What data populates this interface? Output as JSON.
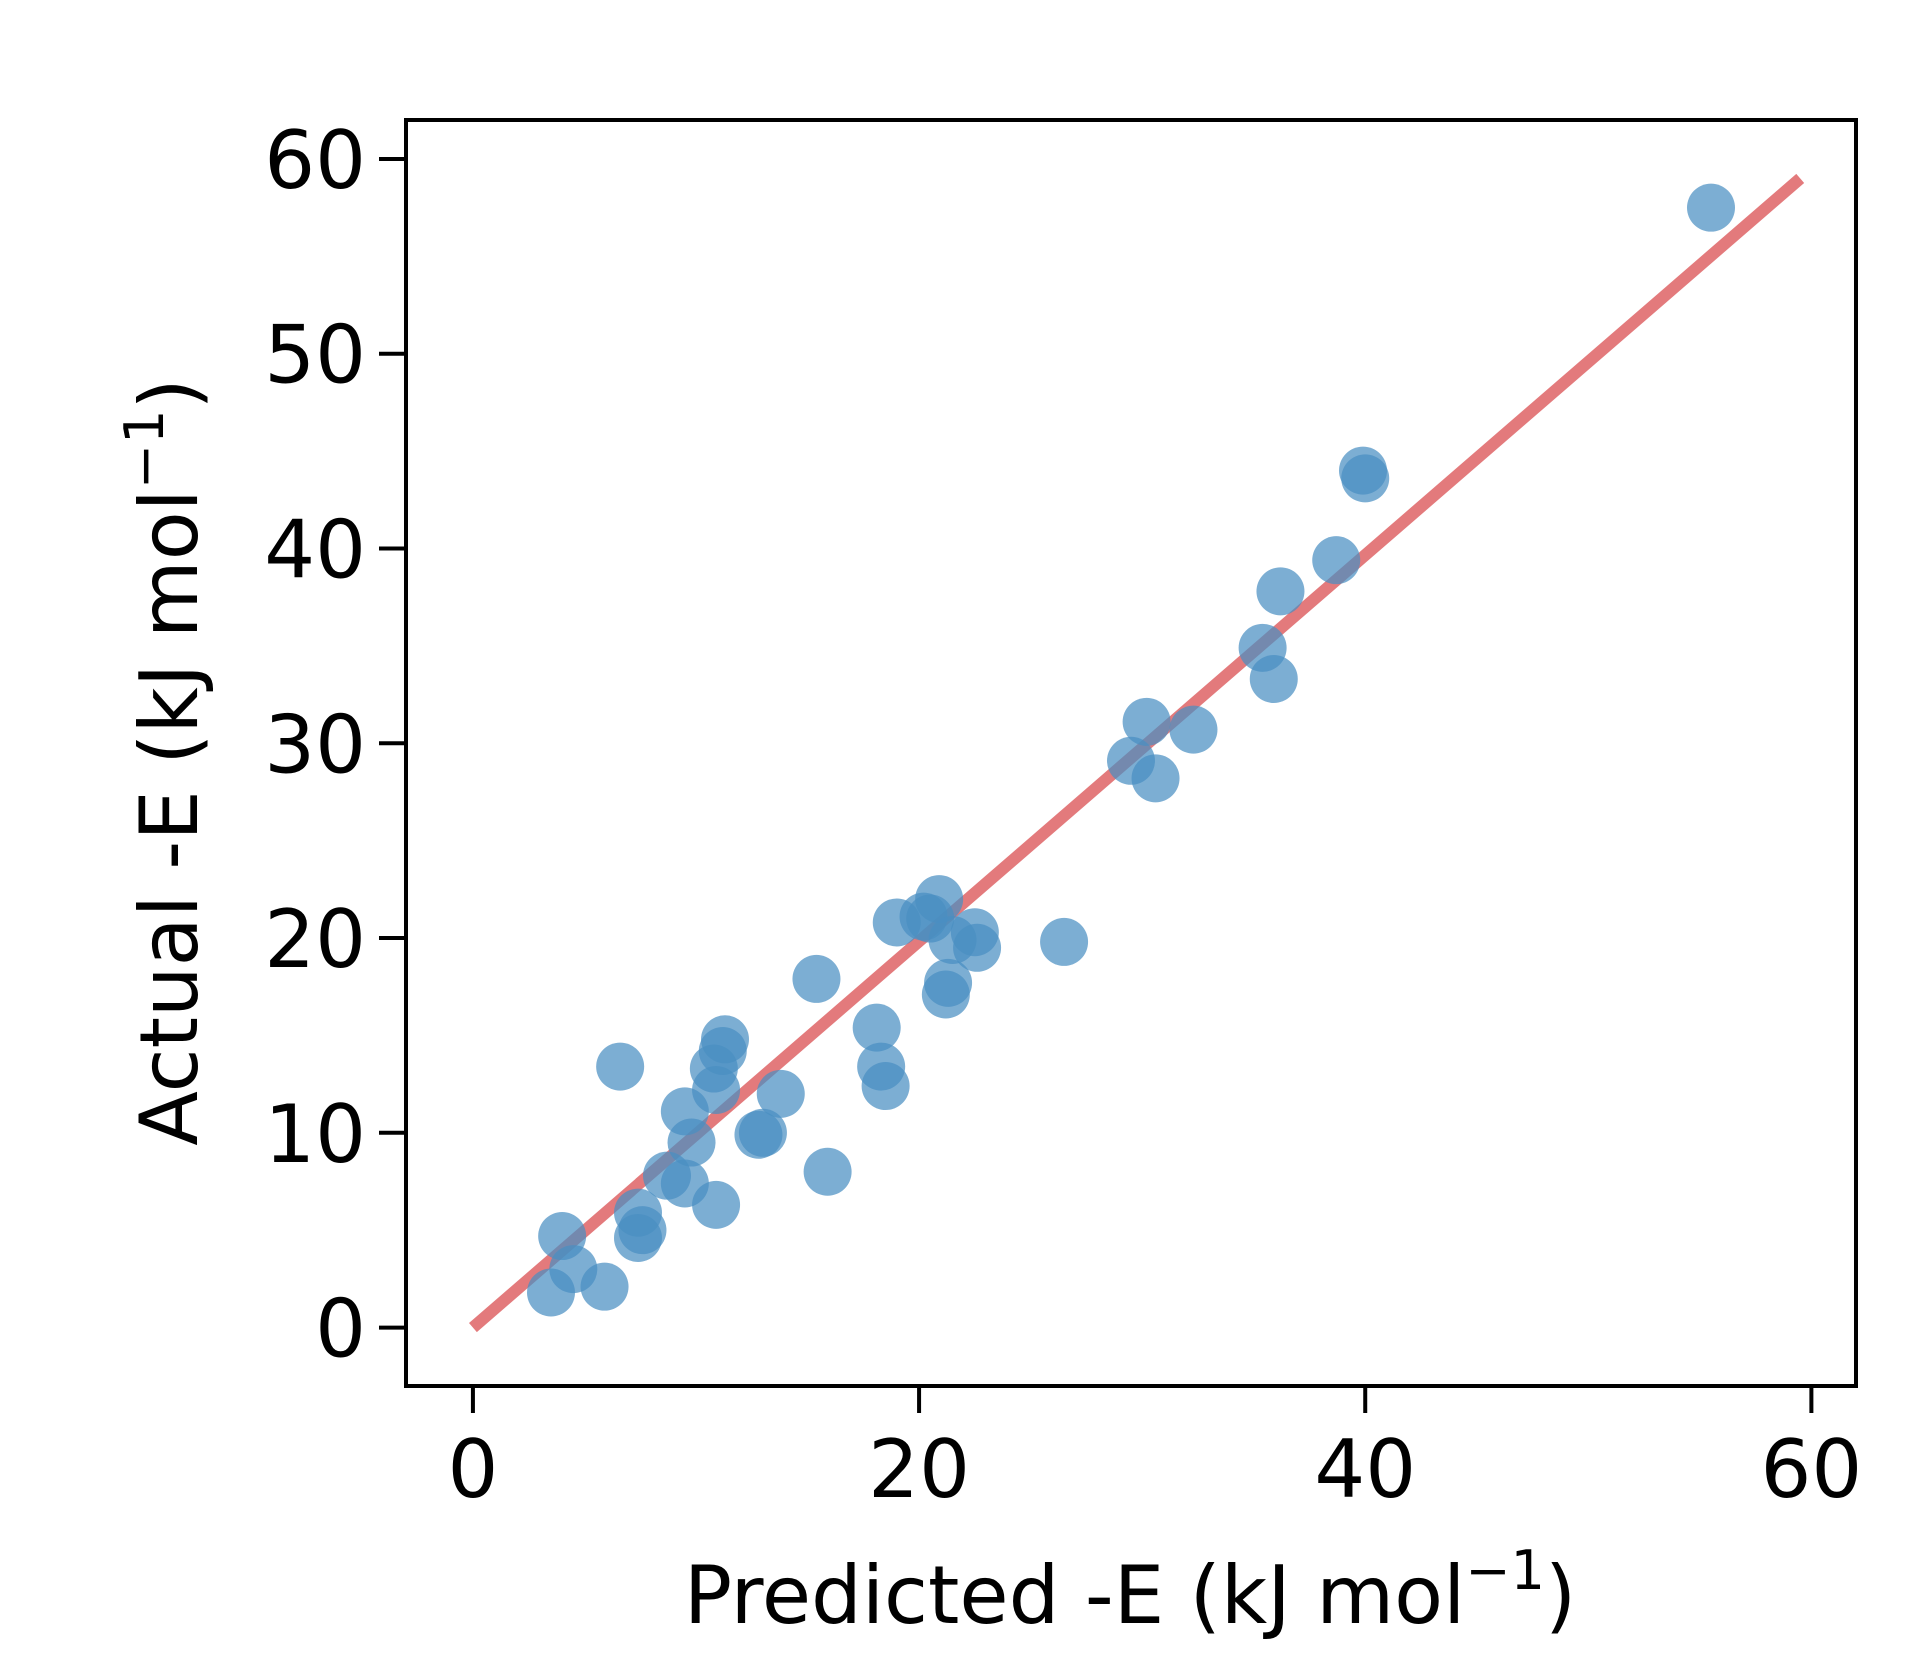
{
  "chart_data": {
    "type": "scatter",
    "title": "",
    "xlabel": {
      "text": "Predicted -E (kJ mol",
      "sup": "−1",
      "close": ")"
    },
    "ylabel": {
      "text": "Actual -E (kJ mol",
      "sup": "−1",
      "close": ")"
    },
    "xlim": [
      -3,
      62
    ],
    "ylim": [
      -3,
      62
    ],
    "xticks": [
      0,
      20,
      40,
      60
    ],
    "yticks": [
      0,
      10,
      20,
      30,
      40,
      50,
      60
    ],
    "grid": false,
    "legend": "none",
    "colors": {
      "points": "#4a8fc2",
      "fit_line": "#e06b6e",
      "axes": "#000000"
    },
    "fit_line": {
      "x": [
        0,
        59.5
      ],
      "y": [
        0,
        59.0
      ]
    },
    "points": [
      {
        "x": 3.5,
        "y": 1.8
      },
      {
        "x": 4.5,
        "y": 3.0
      },
      {
        "x": 5.9,
        "y": 2.1
      },
      {
        "x": 4.0,
        "y": 4.7
      },
      {
        "x": 7.4,
        "y": 4.6
      },
      {
        "x": 7.6,
        "y": 5.0
      },
      {
        "x": 7.4,
        "y": 5.9
      },
      {
        "x": 6.6,
        "y": 13.4
      },
      {
        "x": 8.7,
        "y": 7.8
      },
      {
        "x": 9.5,
        "y": 7.4
      },
      {
        "x": 9.8,
        "y": 9.5
      },
      {
        "x": 9.5,
        "y": 11.1
      },
      {
        "x": 10.9,
        "y": 6.3
      },
      {
        "x": 10.9,
        "y": 12.2
      },
      {
        "x": 10.8,
        "y": 13.3
      },
      {
        "x": 11.2,
        "y": 14.2
      },
      {
        "x": 11.3,
        "y": 14.8
      },
      {
        "x": 12.8,
        "y": 9.9
      },
      {
        "x": 13.0,
        "y": 10.0
      },
      {
        "x": 13.8,
        "y": 12.0
      },
      {
        "x": 15.4,
        "y": 17.9
      },
      {
        "x": 15.9,
        "y": 8.0
      },
      {
        "x": 18.1,
        "y": 15.4
      },
      {
        "x": 18.3,
        "y": 13.4
      },
      {
        "x": 18.5,
        "y": 12.4
      },
      {
        "x": 19.0,
        "y": 20.8
      },
      {
        "x": 20.2,
        "y": 21.1
      },
      {
        "x": 20.9,
        "y": 22.0
      },
      {
        "x": 20.5,
        "y": 21.0
      },
      {
        "x": 21.2,
        "y": 17.1
      },
      {
        "x": 21.3,
        "y": 17.7
      },
      {
        "x": 21.5,
        "y": 19.9
      },
      {
        "x": 22.5,
        "y": 20.3
      },
      {
        "x": 22.6,
        "y": 19.5
      },
      {
        "x": 26.5,
        "y": 19.8
      },
      {
        "x": 29.5,
        "y": 29.1
      },
      {
        "x": 30.2,
        "y": 31.1
      },
      {
        "x": 30.6,
        "y": 28.2
      },
      {
        "x": 32.3,
        "y": 30.7
      },
      {
        "x": 35.4,
        "y": 34.9
      },
      {
        "x": 35.9,
        "y": 33.3
      },
      {
        "x": 36.2,
        "y": 37.8
      },
      {
        "x": 38.7,
        "y": 39.4
      },
      {
        "x": 39.9,
        "y": 44.0
      },
      {
        "x": 40.0,
        "y": 43.6
      },
      {
        "x": 55.5,
        "y": 57.5
      }
    ]
  }
}
